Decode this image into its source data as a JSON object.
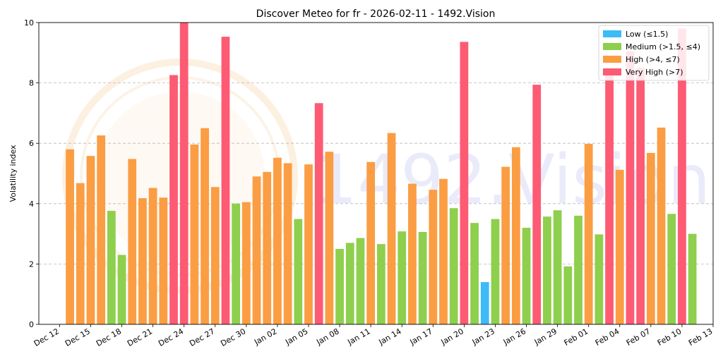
{
  "chart_data": {
    "type": "bar",
    "title": "Discover Meteo for fr - 2026-02-11 - 1492.Vision",
    "xlabel": "",
    "ylabel": "Volatility index",
    "ylim": [
      0,
      10
    ],
    "yticks": [
      0,
      2,
      4,
      6,
      8,
      10
    ],
    "grid": "y-dashed",
    "legend_position": "top-right",
    "watermark": "1492.Vision",
    "xticks": [
      "Dec 12",
      "Dec 15",
      "Dec 18",
      "Dec 21",
      "Dec 24",
      "Dec 27",
      "Dec 30",
      "Jan 02",
      "Jan 05",
      "Jan 08",
      "Jan 11",
      "Jan 14",
      "Jan 17",
      "Jan 20",
      "Jan 23",
      "Jan 26",
      "Jan 29",
      "Feb 01",
      "Feb 04",
      "Feb 07",
      "Feb 10",
      "Feb 13"
    ],
    "categories": [
      {
        "label": "Low (≤1.5)",
        "color": "#3dbbf6"
      },
      {
        "label": "Medium (>1.5, ≤4)",
        "color": "#8ecf4e"
      },
      {
        "label": "High (>4, ≤7)",
        "color": "#fb9d43"
      },
      {
        "label": "Very High (>7)",
        "color": "#fd5a74"
      }
    ],
    "x": [
      "2025-12-13",
      "2025-12-14",
      "2025-12-15",
      "2025-12-16",
      "2025-12-17",
      "2025-12-18",
      "2025-12-19",
      "2025-12-20",
      "2025-12-21",
      "2025-12-22",
      "2025-12-23",
      "2025-12-24",
      "2025-12-25",
      "2025-12-26",
      "2025-12-27",
      "2025-12-28",
      "2025-12-29",
      "2025-12-30",
      "2025-12-31",
      "2026-01-01",
      "2026-01-02",
      "2026-01-03",
      "2026-01-04",
      "2026-01-05",
      "2026-01-06",
      "2026-01-07",
      "2026-01-08",
      "2026-01-09",
      "2026-01-10",
      "2026-01-11",
      "2026-01-12",
      "2026-01-13",
      "2026-01-14",
      "2026-01-15",
      "2026-01-16",
      "2026-01-17",
      "2026-01-18",
      "2026-01-19",
      "2026-01-20",
      "2026-01-21",
      "2026-01-22",
      "2026-01-23",
      "2026-01-24",
      "2026-01-25",
      "2026-01-26",
      "2026-01-27",
      "2026-01-28",
      "2026-01-29",
      "2026-01-30",
      "2026-01-31",
      "2026-02-01",
      "2026-02-02",
      "2026-02-03",
      "2026-02-04",
      "2026-02-05",
      "2026-02-06",
      "2026-02-07",
      "2026-02-08",
      "2026-02-09",
      "2026-02-10",
      "2026-02-11"
    ],
    "values": [
      5.8,
      4.68,
      5.58,
      6.26,
      3.76,
      2.3,
      5.48,
      4.18,
      4.52,
      4.2,
      8.26,
      10.0,
      5.96,
      6.5,
      4.55,
      9.53,
      4.0,
      4.05,
      4.9,
      5.05,
      5.52,
      5.34,
      3.49,
      5.3,
      7.33,
      5.72,
      2.5,
      2.7,
      2.86,
      5.38,
      2.66,
      6.34,
      3.08,
      4.66,
      3.06,
      4.46,
      4.82,
      3.85,
      9.36,
      3.36,
      1.4,
      3.49,
      5.22,
      5.87,
      3.2,
      7.94,
      3.57,
      3.78,
      1.92,
      3.6,
      5.98,
      2.98,
      8.45,
      5.12,
      9.05,
      8.5,
      5.68,
      6.52,
      3.66,
      9.8,
      3.0
    ]
  }
}
